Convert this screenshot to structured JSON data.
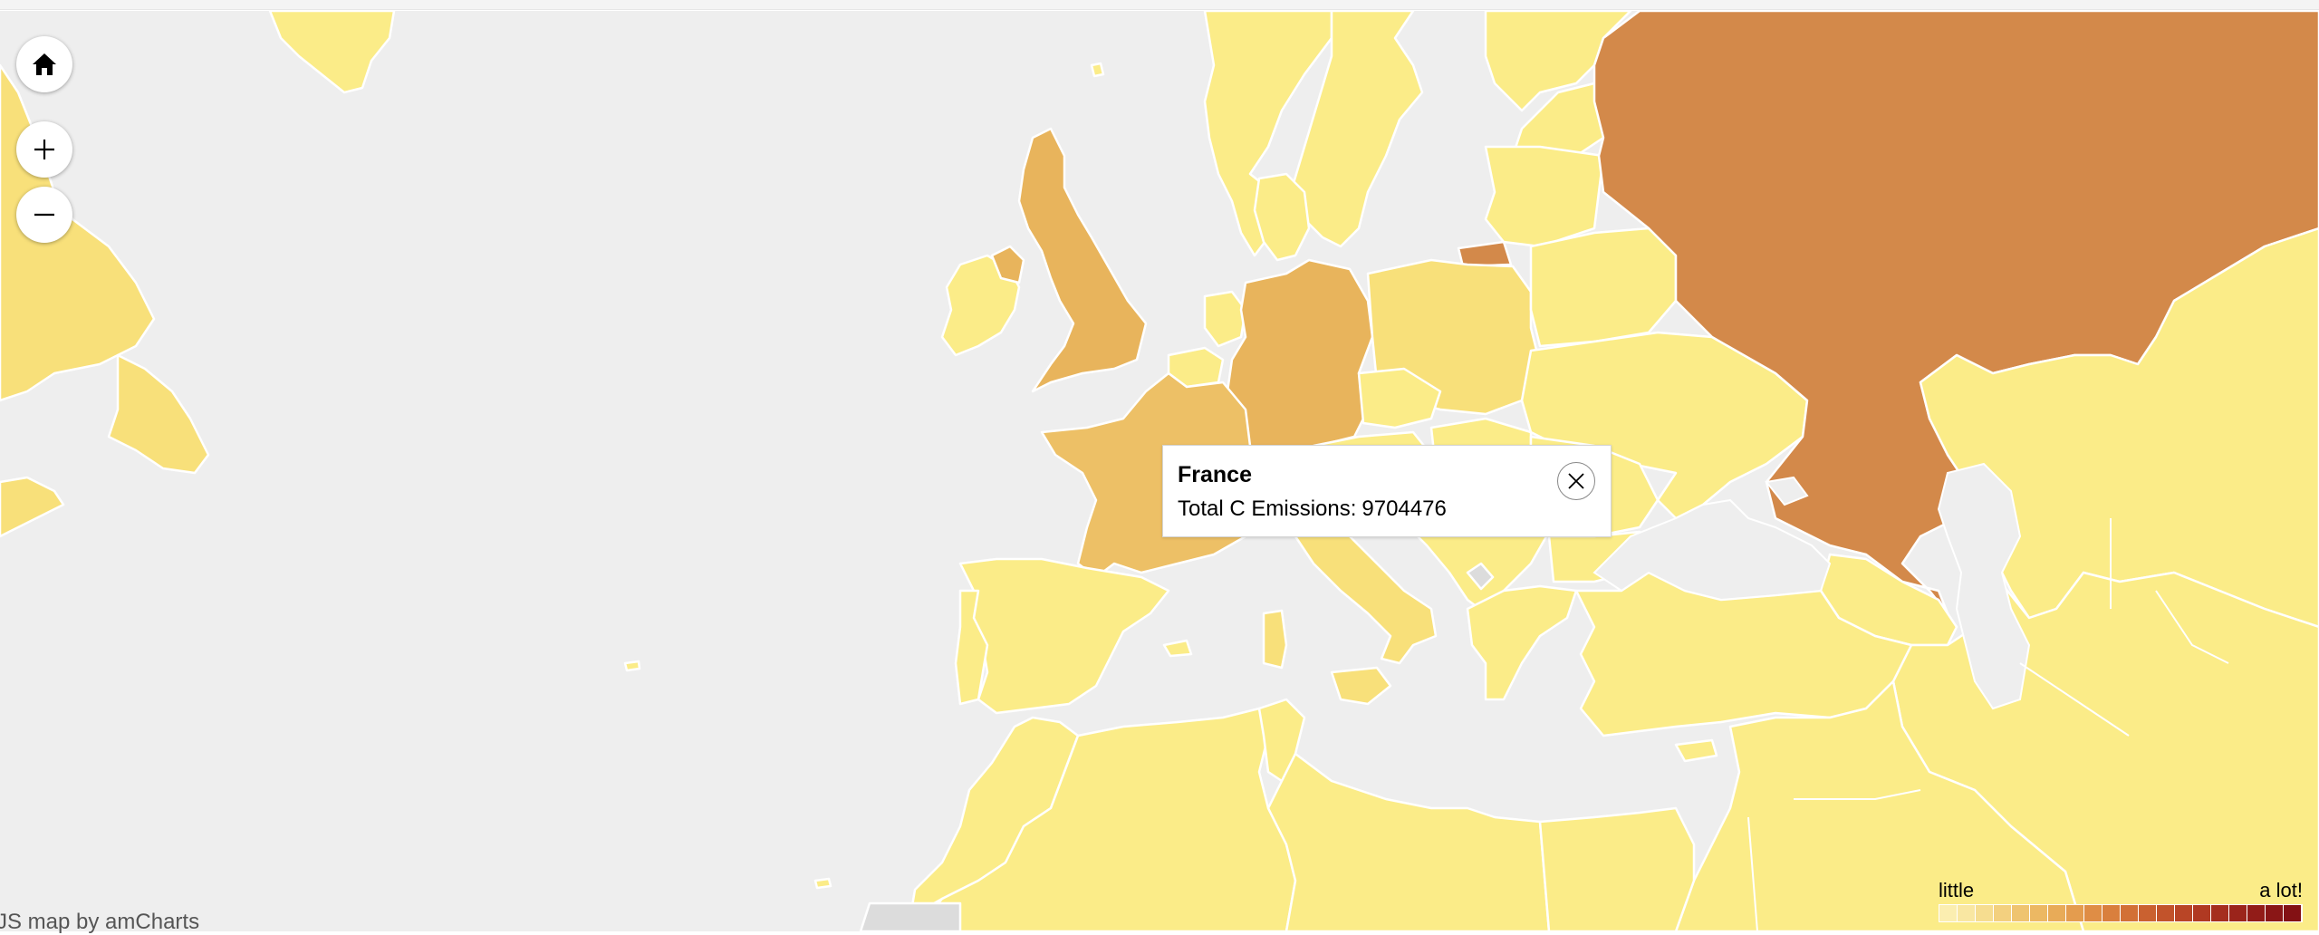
{
  "map": {
    "colors": {
      "ocean": "#eeeeee",
      "low": "#fbec88",
      "low_mid": "#f8e07a",
      "mid": "#edc066",
      "mid_high": "#e8b45c",
      "high": "#d3894a"
    },
    "countries": [
      {
        "name": "Russia",
        "level": "high"
      },
      {
        "name": "United Kingdom",
        "level": "mid_high"
      },
      {
        "name": "Germany",
        "level": "mid_high"
      },
      {
        "name": "France",
        "level": "mid"
      },
      {
        "name": "Poland",
        "level": "low_mid"
      },
      {
        "name": "Italy",
        "level": "low_mid"
      },
      {
        "name": "Spain",
        "level": "low"
      },
      {
        "name": "Kazakhstan",
        "level": "low"
      },
      {
        "name": "Turkey",
        "level": "low"
      },
      {
        "name": "Algeria",
        "level": "low"
      }
    ]
  },
  "controls": {
    "home_icon": "home-icon",
    "zoom_in_icon": "plus-icon",
    "zoom_out_icon": "minus-icon"
  },
  "tooltip": {
    "title": "France",
    "label": "Total C Emissions:",
    "value": "9704476",
    "close_icon": "close-icon"
  },
  "credit": "JS map by amCharts",
  "legend": {
    "low_label": "little",
    "high_label": "a lot!",
    "swatches": [
      "#fbeeb0",
      "#f9e7a2",
      "#f6dd90",
      "#f3d07f",
      "#efc470",
      "#ecb863",
      "#e8ab58",
      "#e49c4e",
      "#df8d45",
      "#d97f3d",
      "#d27036",
      "#ca6130",
      "#c2532b",
      "#b94526",
      "#b03922",
      "#a52e1e",
      "#9b241b",
      "#921c18",
      "#8a1616",
      "#831114"
    ]
  }
}
